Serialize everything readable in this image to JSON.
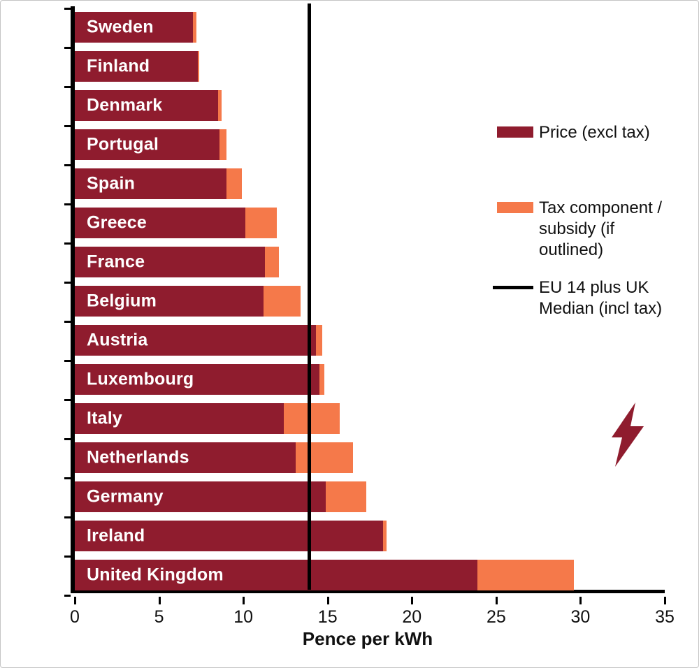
{
  "chart_data": {
    "type": "bar",
    "orientation": "horizontal",
    "xlabel": "Pence per kWh",
    "xlim": [
      0,
      35
    ],
    "xticks": [
      0,
      5,
      10,
      15,
      20,
      25,
      30,
      35
    ],
    "grid": false,
    "legend_position": "right",
    "categories": [
      "Sweden",
      "Finland",
      "Denmark",
      "Portugal",
      "Spain",
      "Greece",
      "France",
      "Belgium",
      "Austria",
      "Luxembourg",
      "Italy",
      "Netherlands",
      "Germany",
      "Ireland",
      "United Kingdom"
    ],
    "series": [
      {
        "name": "Price (excl tax)",
        "color": "#8f1c2e",
        "values": [
          7.0,
          7.3,
          8.5,
          8.6,
          9.0,
          10.1,
          11.3,
          11.2,
          14.3,
          14.5,
          12.4,
          13.1,
          14.9,
          18.3,
          23.9
        ]
      },
      {
        "name": "Tax component / subsidy (if outlined)",
        "color": "#f5794a",
        "values": [
          0.2,
          0.1,
          0.2,
          0.4,
          0.9,
          1.9,
          0.8,
          2.2,
          0.4,
          0.3,
          3.3,
          3.4,
          2.4,
          0.2,
          5.7
        ]
      }
    ],
    "reference_line": {
      "label": "EU 14 plus UK Median (incl tax)",
      "value": 13.9,
      "color": "#000000"
    }
  },
  "legend": {
    "price_label": "Price (excl tax)",
    "tax_label": "Tax component / subsidy (if outlined)",
    "median_label": "EU 14 plus UK Median (incl tax)"
  },
  "axis": {
    "xlabel": "Pence per kWh"
  },
  "colors": {
    "price": "#8f1c2e",
    "tax": "#f5794a",
    "median": "#000000",
    "bolt": "#8f1c2e"
  }
}
